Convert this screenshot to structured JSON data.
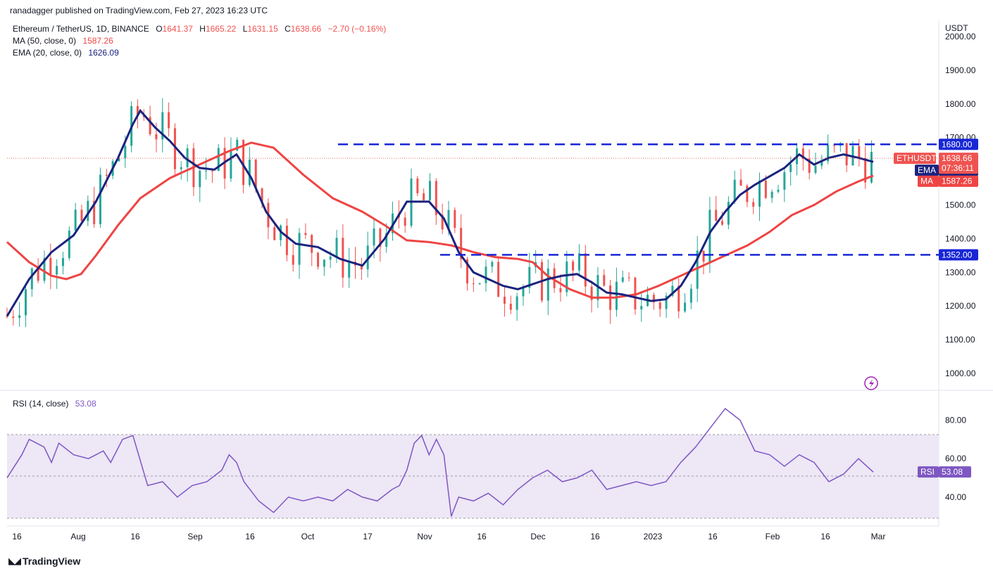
{
  "header": {
    "published": "ranadagger published on TradingView.com, Feb 27, 2023 16:23 UTC"
  },
  "symbol": {
    "title": "Ethereum / TetherUS, 1D, BINANCE",
    "open_label": "O",
    "open": "1641.37",
    "high_label": "H",
    "high": "1665.22",
    "low_label": "L",
    "low": "1631.15",
    "close_label": "C",
    "close": "1638.66",
    "change": "−2.70 (−0.16%)"
  },
  "indicators": {
    "ma_label": "MA (50, close, 0)",
    "ma_value": "1587.26",
    "ema_label": "EMA (20, close, 0)",
    "ema_value": "1626.09",
    "rsi_label": "RSI (14, close)",
    "rsi_value": "53.08"
  },
  "axis": {
    "currency": "USDT",
    "price_ticks": [
      "2000.00",
      "1900.00",
      "1800.00",
      "1700.00",
      "1600.00",
      "1500.00",
      "1400.00",
      "1300.00",
      "1200.00",
      "1100.00",
      "1000.00"
    ],
    "rsi_ticks": [
      "80.00",
      "60.00",
      "40.00"
    ],
    "date_ticks": [
      "16",
      "Aug",
      "16",
      "Sep",
      "16",
      "Oct",
      "17",
      "Nov",
      "16",
      "Dec",
      "16",
      "2023",
      "16",
      "Feb",
      "16",
      "Mar"
    ]
  },
  "labels": {
    "last_symbol": "ETHUSDT",
    "last_price": "1638.66",
    "countdown": "07:36:11",
    "ema_tag": "EMA",
    "ema_price": "1626.09",
    "ma_tag": "MA",
    "ma_price": "1587.26",
    "resistance": "1680.00",
    "support": "1352.00",
    "rsi_tag": "RSI",
    "rsi_price": "53.08"
  },
  "colors": {
    "up": "#26a69a",
    "down": "#ef5350",
    "ema": "#1a237e",
    "ma": "#ef4444",
    "level": "#1826d6",
    "rsi": "#7e57c2",
    "rsi_band": "#ede7f6"
  },
  "watermark": "TradingView",
  "chart_data": {
    "type": "candlestick",
    "title": "Ethereum / TetherUS, 1D, BINANCE",
    "ylim": [
      950,
      2050
    ],
    "rsi_ylim": [
      25,
      90
    ],
    "horizontal_levels": [
      1680,
      1352
    ],
    "ema20_path": [
      [
        0,
        1170
      ],
      [
        15,
        1280
      ],
      [
        30,
        1360
      ],
      [
        45,
        1410
      ],
      [
        60,
        1510
      ],
      [
        75,
        1640
      ],
      [
        85,
        1740
      ],
      [
        90,
        1780
      ],
      [
        100,
        1730
      ],
      [
        110,
        1690
      ],
      [
        120,
        1640
      ],
      [
        130,
        1610
      ],
      [
        140,
        1605
      ],
      [
        148,
        1630
      ],
      [
        155,
        1650
      ],
      [
        165,
        1580
      ],
      [
        175,
        1480
      ],
      [
        185,
        1420
      ],
      [
        195,
        1385
      ],
      [
        210,
        1375
      ],
      [
        225,
        1340
      ],
      [
        240,
        1320
      ],
      [
        255,
        1400
      ],
      [
        270,
        1510
      ],
      [
        285,
        1510
      ],
      [
        295,
        1460
      ],
      [
        305,
        1360
      ],
      [
        315,
        1300
      ],
      [
        325,
        1280
      ],
      [
        335,
        1260
      ],
      [
        345,
        1250
      ],
      [
        355,
        1265
      ],
      [
        365,
        1280
      ],
      [
        375,
        1290
      ],
      [
        385,
        1295
      ],
      [
        395,
        1270
      ],
      [
        405,
        1240
      ],
      [
        415,
        1235
      ],
      [
        425,
        1225
      ],
      [
        435,
        1215
      ],
      [
        445,
        1220
      ],
      [
        455,
        1260
      ],
      [
        465,
        1330
      ],
      [
        475,
        1420
      ],
      [
        485,
        1480
      ],
      [
        495,
        1530
      ],
      [
        505,
        1560
      ],
      [
        515,
        1585
      ],
      [
        525,
        1610
      ],
      [
        535,
        1650
      ],
      [
        545,
        1620
      ],
      [
        555,
        1640
      ],
      [
        565,
        1650
      ],
      [
        575,
        1640
      ],
      [
        585,
        1628
      ]
    ],
    "ma50_path": [
      [
        0,
        1390
      ],
      [
        15,
        1330
      ],
      [
        30,
        1290
      ],
      [
        40,
        1280
      ],
      [
        50,
        1295
      ],
      [
        60,
        1350
      ],
      [
        75,
        1440
      ],
      [
        90,
        1520
      ],
      [
        110,
        1580
      ],
      [
        130,
        1620
      ],
      [
        150,
        1660
      ],
      [
        165,
        1685
      ],
      [
        180,
        1670
      ],
      [
        200,
        1590
      ],
      [
        220,
        1520
      ],
      [
        240,
        1480
      ],
      [
        255,
        1440
      ],
      [
        270,
        1395
      ],
      [
        285,
        1390
      ],
      [
        300,
        1380
      ],
      [
        315,
        1360
      ],
      [
        330,
        1345
      ],
      [
        345,
        1340
      ],
      [
        355,
        1330
      ],
      [
        365,
        1290
      ],
      [
        380,
        1250
      ],
      [
        395,
        1225
      ],
      [
        410,
        1225
      ],
      [
        425,
        1235
      ],
      [
        440,
        1260
      ],
      [
        455,
        1290
      ],
      [
        470,
        1320
      ],
      [
        485,
        1350
      ],
      [
        500,
        1380
      ],
      [
        515,
        1420
      ],
      [
        530,
        1470
      ],
      [
        545,
        1500
      ],
      [
        560,
        1540
      ],
      [
        575,
        1570
      ],
      [
        585,
        1587
      ]
    ],
    "rsi_path": [
      [
        0,
        50
      ],
      [
        10,
        62
      ],
      [
        15,
        70
      ],
      [
        25,
        66
      ],
      [
        30,
        58
      ],
      [
        35,
        68
      ],
      [
        45,
        62
      ],
      [
        55,
        60
      ],
      [
        65,
        64
      ],
      [
        70,
        58
      ],
      [
        78,
        70
      ],
      [
        85,
        72
      ],
      [
        95,
        46
      ],
      [
        105,
        48
      ],
      [
        115,
        40
      ],
      [
        125,
        46
      ],
      [
        135,
        48
      ],
      [
        145,
        54
      ],
      [
        150,
        62
      ],
      [
        155,
        58
      ],
      [
        160,
        48
      ],
      [
        170,
        38
      ],
      [
        180,
        32
      ],
      [
        190,
        40
      ],
      [
        200,
        38
      ],
      [
        210,
        40
      ],
      [
        220,
        38
      ],
      [
        230,
        44
      ],
      [
        240,
        40
      ],
      [
        250,
        38
      ],
      [
        260,
        44
      ],
      [
        265,
        46
      ],
      [
        270,
        54
      ],
      [
        275,
        68
      ],
      [
        280,
        72
      ],
      [
        285,
        62
      ],
      [
        290,
        70
      ],
      [
        295,
        62
      ],
      [
        300,
        30
      ],
      [
        305,
        40
      ],
      [
        315,
        38
      ],
      [
        325,
        42
      ],
      [
        335,
        36
      ],
      [
        345,
        44
      ],
      [
        355,
        50
      ],
      [
        365,
        54
      ],
      [
        375,
        48
      ],
      [
        385,
        50
      ],
      [
        395,
        54
      ],
      [
        405,
        44
      ],
      [
        415,
        46
      ],
      [
        425,
        48
      ],
      [
        435,
        46
      ],
      [
        445,
        48
      ],
      [
        455,
        58
      ],
      [
        465,
        66
      ],
      [
        475,
        76
      ],
      [
        485,
        86
      ],
      [
        495,
        80
      ],
      [
        505,
        64
      ],
      [
        515,
        62
      ],
      [
        525,
        56
      ],
      [
        535,
        62
      ],
      [
        545,
        58
      ],
      [
        555,
        48
      ],
      [
        565,
        52
      ],
      [
        575,
        60
      ],
      [
        585,
        53
      ]
    ],
    "price_range_note": "Daily candles approx. Jul 2022 – Feb 27, 2023"
  }
}
